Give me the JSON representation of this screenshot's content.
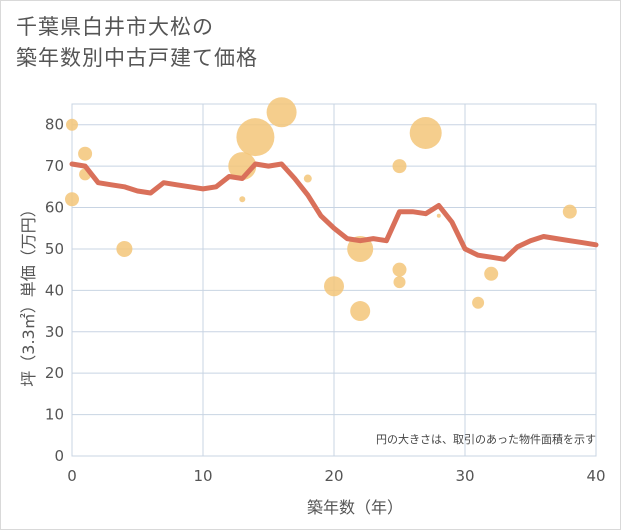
{
  "title_line1": "千葉県白井市大松の",
  "title_line2": "築年数別中古戸建て価格",
  "chart_data": {
    "type": "scatter+line",
    "xlabel": "築年数（年）",
    "ylabel": "坪（3.3㎡）単価（万円）",
    "xlim": [
      0,
      40
    ],
    "ylim": [
      0,
      85
    ],
    "xticks": [
      0,
      10,
      20,
      30,
      40
    ],
    "yticks": [
      0,
      10,
      20,
      30,
      40,
      50,
      60,
      70,
      80
    ],
    "grid": true,
    "note": "円の大きさは、取引のあった物件面積を示す",
    "colors": {
      "bubble": "#f3c679",
      "line": "#d9705a",
      "grid": "#c8d4e3"
    },
    "bubbles": [
      {
        "x": 0,
        "y": 80,
        "size": 6
      },
      {
        "x": 0,
        "y": 62,
        "size": 7
      },
      {
        "x": 1,
        "y": 73,
        "size": 7
      },
      {
        "x": 1,
        "y": 68,
        "size": 6
      },
      {
        "x": 4,
        "y": 50,
        "size": 8
      },
      {
        "x": 13,
        "y": 70,
        "size": 14
      },
      {
        "x": 13,
        "y": 62,
        "size": 3
      },
      {
        "x": 14,
        "y": 77,
        "size": 19
      },
      {
        "x": 16,
        "y": 83,
        "size": 15
      },
      {
        "x": 18,
        "y": 67,
        "size": 4
      },
      {
        "x": 20,
        "y": 41,
        "size": 10
      },
      {
        "x": 22,
        "y": 50,
        "size": 13
      },
      {
        "x": 22,
        "y": 35,
        "size": 10
      },
      {
        "x": 25,
        "y": 70,
        "size": 7
      },
      {
        "x": 25,
        "y": 45,
        "size": 7
      },
      {
        "x": 25,
        "y": 42,
        "size": 6
      },
      {
        "x": 27,
        "y": 78,
        "size": 16
      },
      {
        "x": 28,
        "y": 58,
        "size": 2
      },
      {
        "x": 31,
        "y": 37,
        "size": 6
      },
      {
        "x": 32,
        "y": 44,
        "size": 7
      },
      {
        "x": 38,
        "y": 59,
        "size": 7
      }
    ],
    "line": {
      "x": [
        0,
        1,
        2,
        3,
        4,
        5,
        6,
        7,
        8,
        9,
        10,
        11,
        12,
        13,
        14,
        15,
        16,
        17,
        18,
        19,
        20,
        21,
        22,
        23,
        24,
        25,
        26,
        27,
        28,
        29,
        30,
        31,
        32,
        33,
        34,
        35,
        36,
        37,
        38,
        39,
        40
      ],
      "y": [
        70.5,
        70,
        66,
        65.5,
        65,
        64,
        63.5,
        66,
        65.5,
        65,
        64.5,
        65,
        67.5,
        67,
        70.5,
        70,
        70.5,
        67,
        63,
        58,
        55,
        52.5,
        52,
        52.5,
        52,
        59,
        59,
        58.5,
        60.5,
        56.5,
        50,
        48.5,
        48,
        47.5,
        50.5,
        52,
        53,
        52.5,
        52,
        51.5,
        51
      ]
    }
  }
}
